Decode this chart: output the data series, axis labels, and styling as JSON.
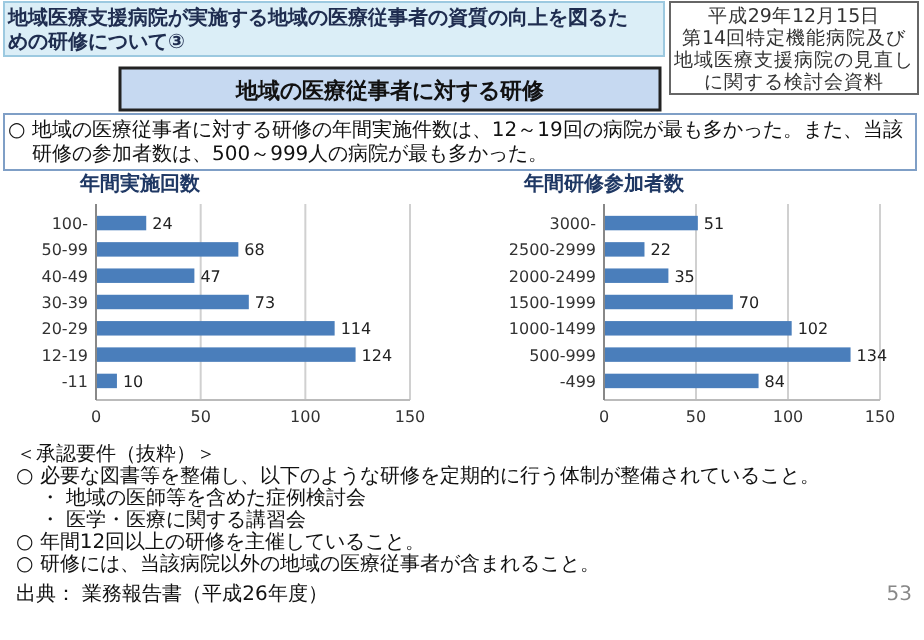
{
  "chart_data": [
    {
      "type": "bar",
      "orientation": "horizontal",
      "title": "年間実施回数",
      "categories": [
        "100-",
        "50-99",
        "40-49",
        "30-39",
        "20-29",
        "12-19",
        "-11"
      ],
      "values": [
        24,
        68,
        47,
        73,
        114,
        124,
        10
      ],
      "color": "#4a7ebb",
      "xlim": [
        0,
        150
      ],
      "xticks": [
        0,
        50,
        100,
        150
      ],
      "grid": "x",
      "data_labels": true,
      "annotations": [
        "地域医療支援病院が実施する地域の医療従事者の資質の向上を図るための研修について③",
        "平成29年12月15日",
        "第14回特定機能病院及び",
        "地域医療支援病院の見直し",
        "に関する検討会資料",
        "地域の医療従事者に対する研修",
        "○ 地域の医療従事者に対する研修の年間実施件数は、12～19回の病院が最も多かった。また、当該",
        "研修の参加者数は、500～999人の病院が最も多かった。",
        "＜承認要件（抜粋）＞",
        "○ 必要な図書等を整備し、以下のような研修を定期的に行う体制が整備されていること。",
        "・ 地域の医師等を含めた症例検討会",
        "・ 医学・医療に関する講習会",
        "○ 年間12回以上の研修を主催していること。",
        "○ 研修には、当該病院以外の地域の医療従事者が含まれること。",
        "出典： 業務報告書（平成26年度）",
        "53"
      ]
    },
    {
      "type": "bar",
      "orientation": "horizontal",
      "title": "年間研修参加者数",
      "categories": [
        "3000-",
        "2500-2999",
        "2000-2499",
        "1500-1999",
        "1000-1499",
        "500-999",
        "-499"
      ],
      "values": [
        51,
        22,
        35,
        70,
        102,
        134,
        84
      ],
      "color": "#4a7ebb",
      "xlim": [
        0,
        150
      ],
      "xticks": [
        0,
        50,
        100,
        150
      ],
      "grid": "x",
      "data_labels": true
    }
  ]
}
